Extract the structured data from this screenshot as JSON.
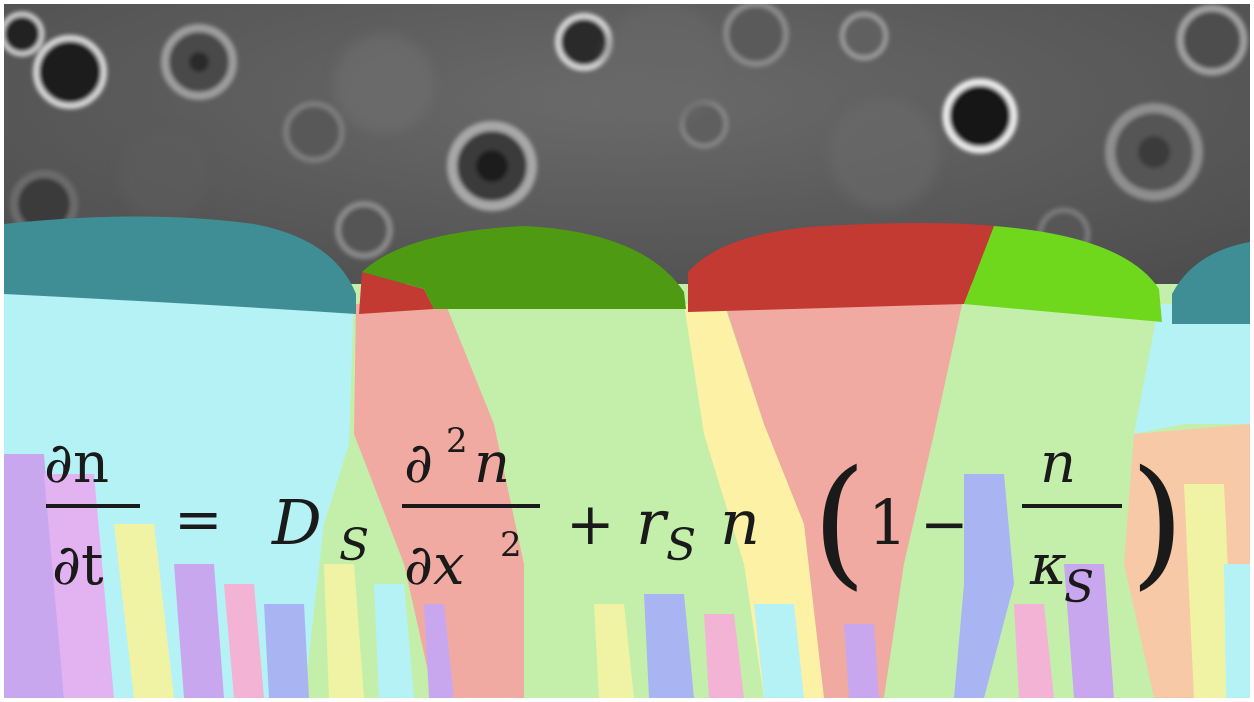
{
  "image": {
    "kind": "micrograph-with-simulation-overlay",
    "background": "grayscale phase-contrast microscopy of cells",
    "overlay": "multicolored sectored colony front with smooth crest bumps"
  },
  "colors": {
    "micrograph_bg": "#5a5a5a",
    "cap_teal": "#3f8e95",
    "cap_dark_green": "#4e9a12",
    "cap_red": "#c33a33",
    "cap_lime": "#6fd81d",
    "sector_cyan": "#b5f2f6",
    "sector_pink": "#f0aaa1",
    "sector_light_green": "#c3efaa",
    "sector_yellow": "#fdf1a6",
    "sector_violet": "#c9a7ef",
    "sector_blue": "#a9b4f3"
  },
  "equation": {
    "lhs_num": "∂n",
    "lhs_den": "∂t",
    "equals": "=",
    "D": "D",
    "sub_S1": "S",
    "t1_num_d": "∂",
    "t1_num_sup": "2",
    "t1_num_n": "n",
    "t1_den_d": "∂x",
    "t1_den_sup": "2",
    "plus": "+",
    "r": "r",
    "sub_S2": "S",
    "n": "n",
    "lparen": "(",
    "one": "1",
    "minus": "−",
    "frac_num": "n",
    "frac_den_kappa": "κ",
    "sub_S3": "S",
    "rparen": ")"
  }
}
